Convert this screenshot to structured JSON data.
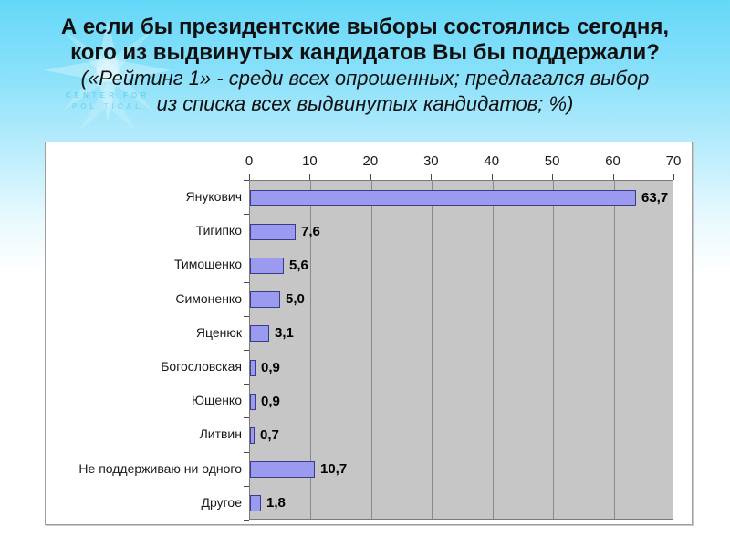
{
  "title": {
    "lines": [
      "А если бы президентские выборы состоялись сегодня,",
      "кого из выдвинутых кандидатов Вы бы поддержали?",
      "(«Рейтинг 1» - среди всех опрошенных; предлагался выбор",
      "из списка всех выдвинутых кандидатов; %)"
    ]
  },
  "watermark": {
    "lines": [
      "CENTER FOR",
      "POLITICAL"
    ]
  },
  "chart_data": {
    "type": "bar",
    "orientation": "horizontal",
    "title": "",
    "xlabel": "",
    "ylabel": "",
    "categories": [
      "Янукович",
      "Тигипко",
      "Тимошенко",
      "Симоненко",
      "Яценюк",
      "Богословская",
      "Ющенко",
      "Литвин",
      "Не поддерживаю ни одного",
      "Другое"
    ],
    "values": [
      63.7,
      7.6,
      5.6,
      5.0,
      3.1,
      0.9,
      0.9,
      0.7,
      10.7,
      1.8
    ],
    "value_labels": [
      "63,7",
      "7,6",
      "5,6",
      "5,0",
      "3,1",
      "0,9",
      "0,9",
      "0,7",
      "10,7",
      "1,8"
    ],
    "x_ticks": [
      0,
      10,
      20,
      30,
      40,
      50,
      60,
      70
    ],
    "xlim": [
      0,
      70
    ],
    "grid": true,
    "legend": "none",
    "colors": {
      "bar_fill": "#9A9AF0",
      "bar_border": "#3C3C84",
      "plot_bg": "#C6C6C6",
      "gridline": "#8A8A8A",
      "frame_bg": "#FFFFFF",
      "frame_border": "#9E9E9E",
      "text": "#1A1A1A"
    }
  }
}
